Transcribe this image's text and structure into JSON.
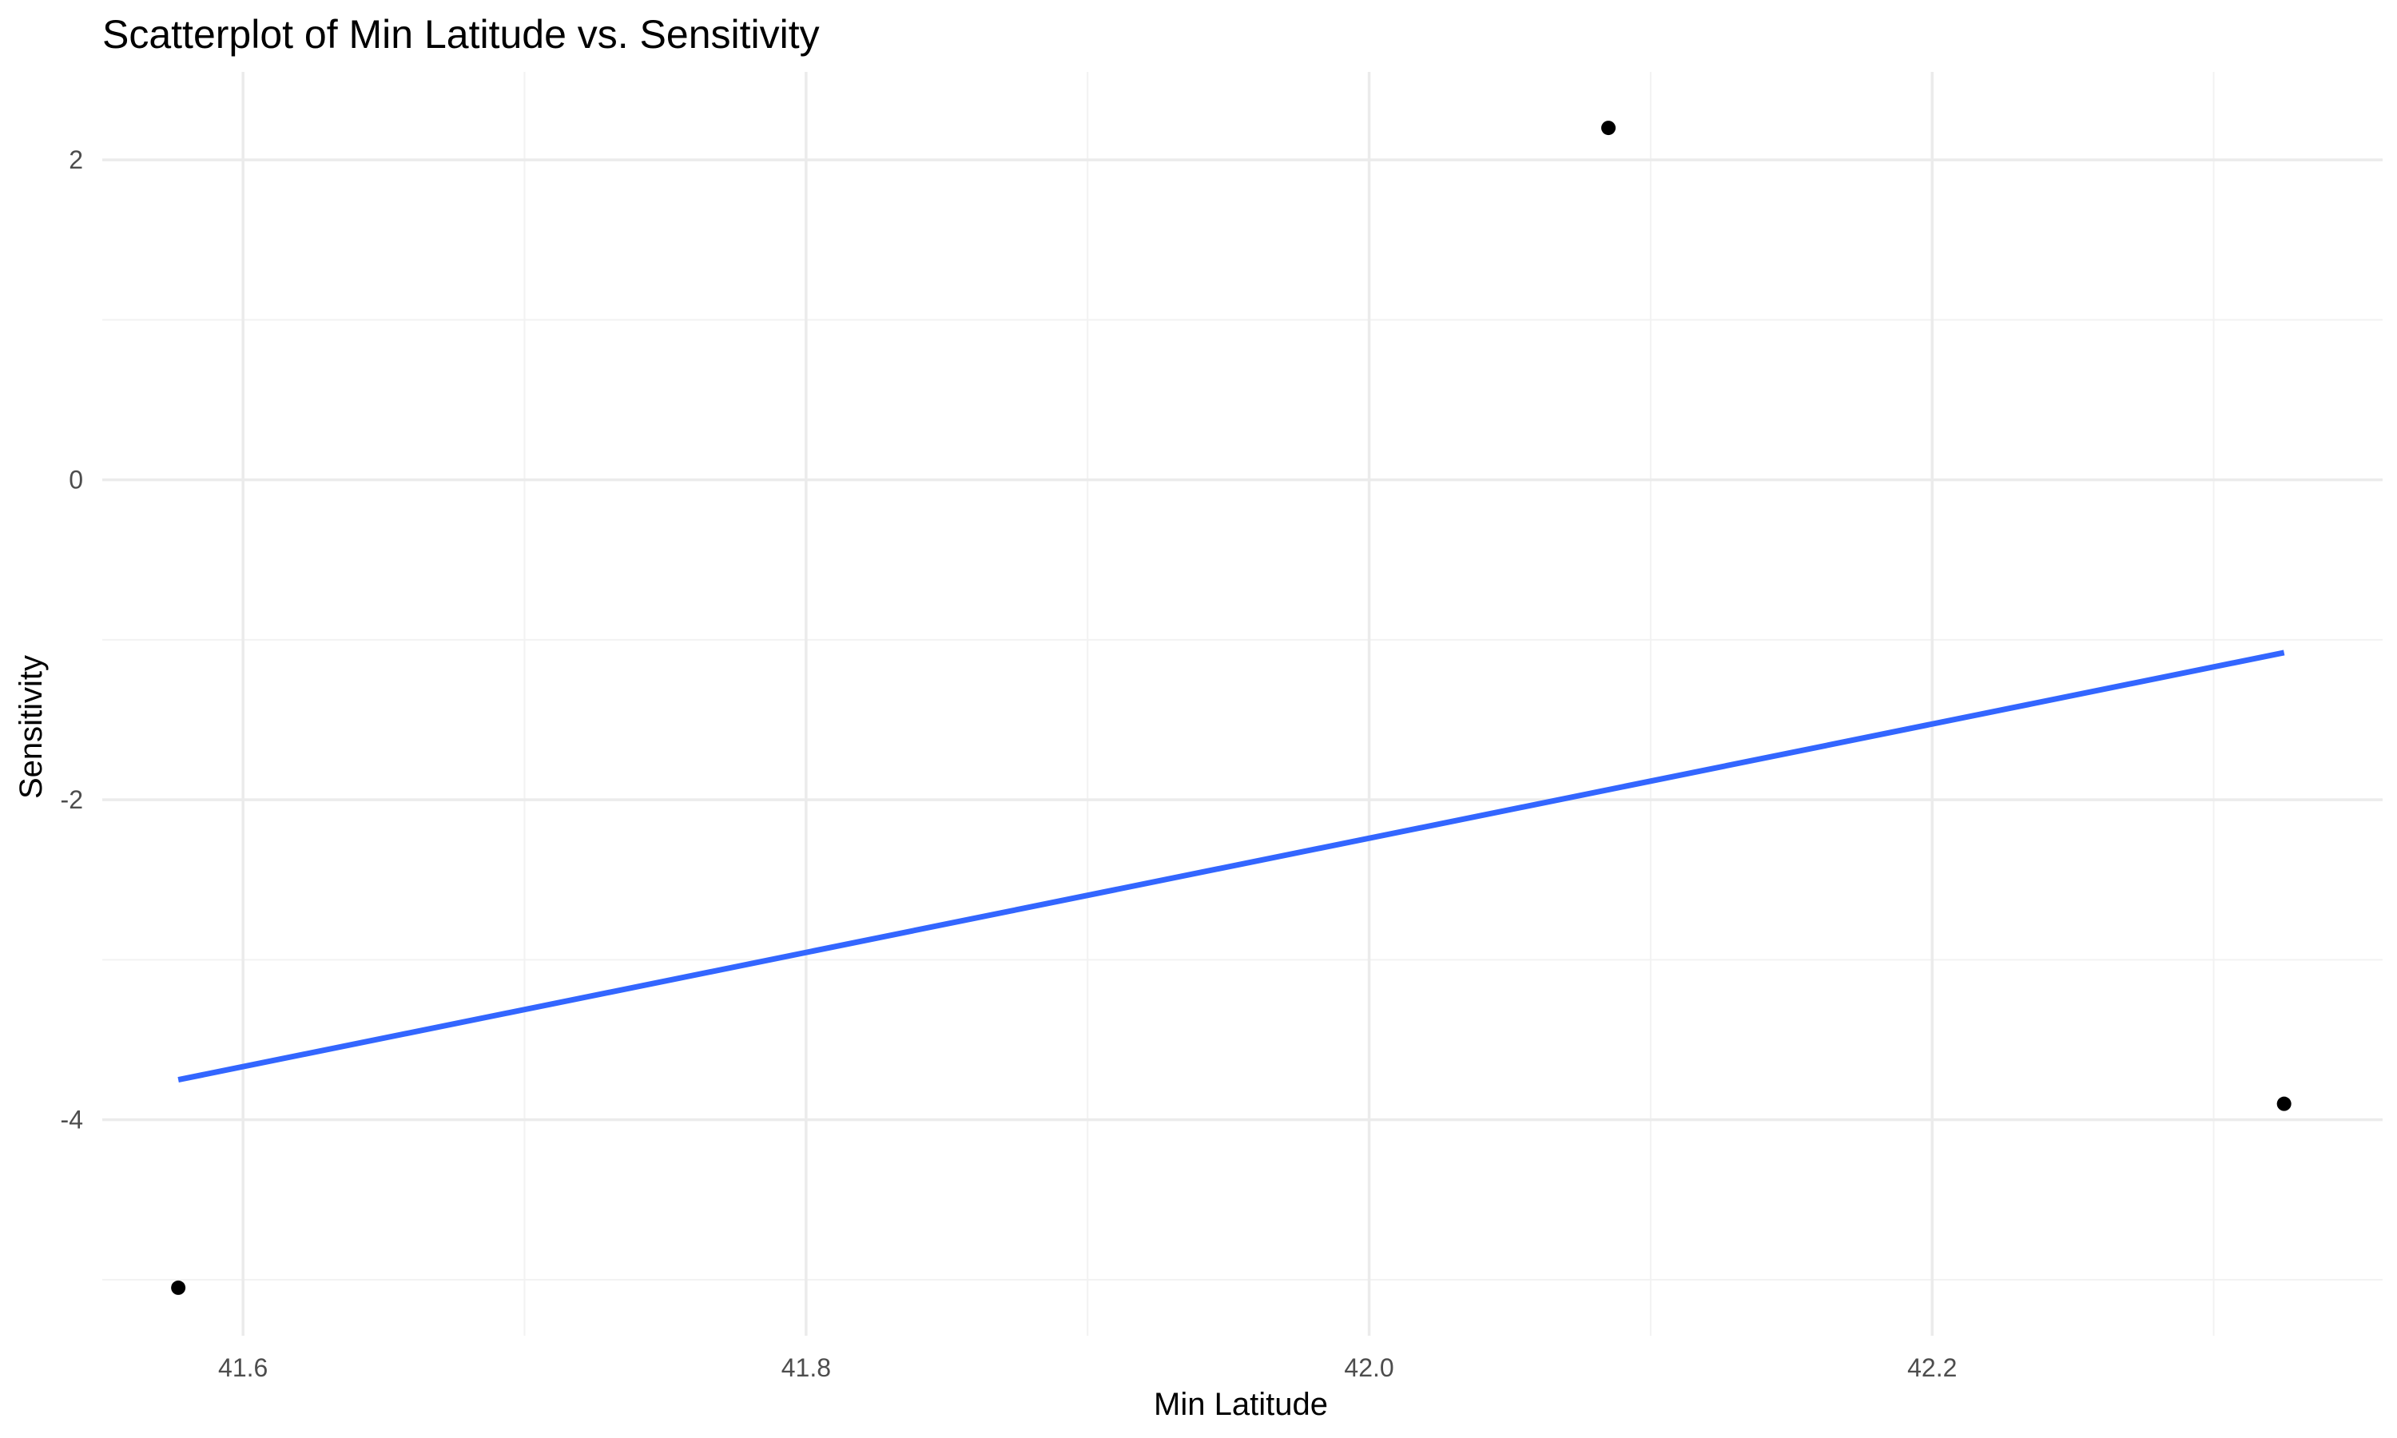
{
  "chart_data": {
    "type": "scatter",
    "title": "Scatterplot of Min Latitude vs. Sensitivity",
    "xlabel": "Min Latitude",
    "ylabel": "Sensitivity",
    "xlim": [
      41.55,
      42.36
    ],
    "ylim": [
      -5.35,
      2.55
    ],
    "x_ticks": [
      41.6,
      41.8,
      42.0,
      42.2
    ],
    "x_tick_labels": [
      "41.6",
      "41.8",
      "42.0",
      "42.2"
    ],
    "x_minor_ticks": [
      41.7,
      41.9,
      42.1,
      42.3
    ],
    "y_ticks": [
      2,
      0,
      -2,
      -4
    ],
    "y_tick_labels": [
      "2",
      "0",
      "-2",
      "-4"
    ],
    "y_minor_ticks": [
      1,
      -1,
      -3,
      -5
    ],
    "grid": true,
    "legend": "none",
    "series": [
      {
        "points": [
          {
            "x": 41.577,
            "y": -5.05
          },
          {
            "x": 42.085,
            "y": 2.2
          },
          {
            "x": 42.325,
            "y": -3.9
          }
        ],
        "color": "#000000"
      }
    ],
    "trend_line": {
      "x": [
        41.577,
        42.325
      ],
      "y": [
        -3.75,
        -1.08
      ],
      "color": "#3366FF"
    }
  }
}
